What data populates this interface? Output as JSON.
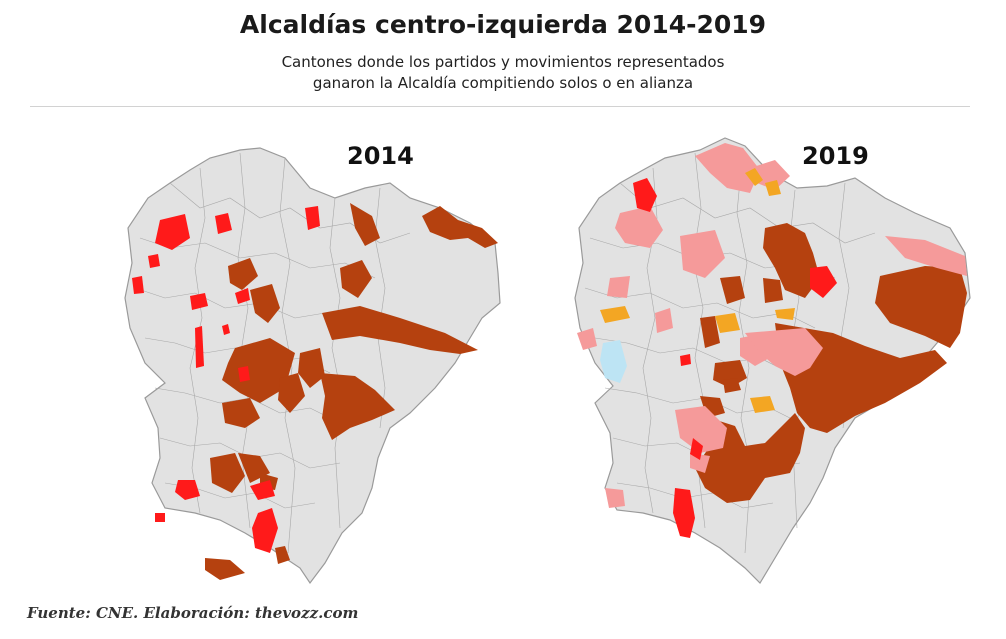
{
  "header": {
    "title": "Alcaldías centro-izquierda 2014-2019",
    "subtitle_line1": "Cantones donde los partidos y movimientos representados",
    "subtitle_line2": "ganaron la Alcaldía compitiendo solos o en alianza"
  },
  "maps": [
    {
      "year": "2014"
    },
    {
      "year": "2019"
    }
  ],
  "colors": {
    "base": "#e2e2e2",
    "border": "#9a9a9a",
    "dark_orange": "#b5410f",
    "red": "#ff1a1a",
    "pink": "#f59a9a",
    "yellow": "#f3a623",
    "light_blue": "#bde4f4"
  },
  "footer": {
    "source": "Fuente: CNE. Elaboración: thevozz.com"
  }
}
